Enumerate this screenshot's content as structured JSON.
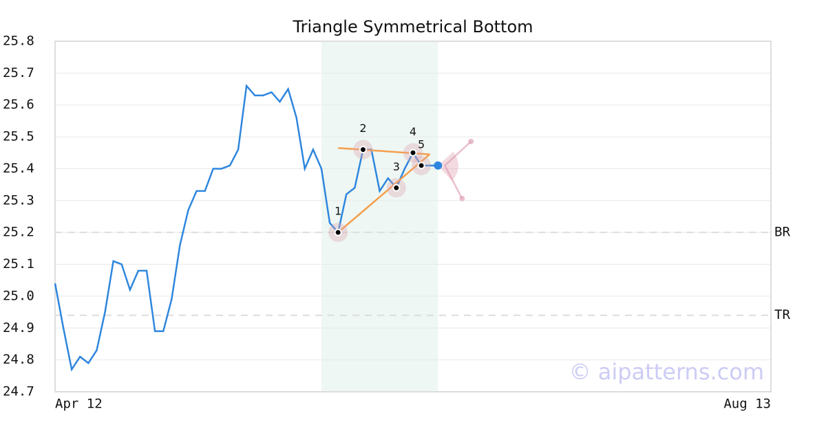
{
  "chart_data": {
    "type": "line",
    "title": "Triangle Symmetrical Bottom",
    "categories": [
      "Apr 12",
      null,
      null,
      null,
      null,
      null,
      null,
      null,
      null,
      null,
      null,
      null,
      null,
      null,
      null,
      null,
      null,
      null,
      null,
      null,
      null,
      null,
      null,
      null,
      null,
      null,
      null,
      null,
      null,
      null,
      null,
      null,
      null,
      null,
      null,
      null,
      null,
      null,
      null,
      null,
      null,
      null,
      null,
      null,
      null,
      null,
      null,
      null,
      null,
      null,
      null,
      null,
      null,
      null,
      null,
      null,
      null,
      null,
      null,
      null,
      null,
      null,
      null,
      null,
      null,
      null,
      null,
      null,
      null,
      null,
      null,
      null,
      null,
      null,
      null,
      null,
      null,
      null,
      null,
      null,
      null,
      null,
      null,
      null,
      null,
      null,
      "Aug 13"
    ],
    "series": [
      {
        "color": "#2e86de",
        "values": [
          25.04,
          24.9,
          24.77,
          24.81,
          24.79,
          24.83,
          24.95,
          25.11,
          25.1,
          25.02,
          25.08,
          25.08,
          24.89,
          24.89,
          24.99,
          25.16,
          25.27,
          25.33,
          25.33,
          25.4,
          25.4,
          25.41,
          25.46,
          25.66,
          25.63,
          25.63,
          25.64,
          25.61,
          25.65,
          25.56,
          25.4,
          25.46,
          25.4,
          25.23,
          25.2,
          25.32,
          25.34,
          25.46,
          25.46,
          25.33,
          25.37,
          25.34,
          25.4,
          25.45,
          25.41,
          25.41,
          25.41,
          null,
          null,
          null,
          null,
          null,
          null,
          null,
          null,
          null,
          null,
          null,
          null,
          null,
          null,
          null,
          null,
          null,
          null,
          null,
          null,
          null,
          null,
          null,
          null,
          null,
          null,
          null,
          null,
          null,
          null,
          null,
          null,
          null,
          null,
          null,
          null,
          null,
          null,
          null,
          null
        ]
      }
    ],
    "pattern_points": [
      {
        "label": "1",
        "index": 34
      },
      {
        "label": "2",
        "index": 37
      },
      {
        "label": "3",
        "index": 41
      },
      {
        "label": "4",
        "index": 43
      },
      {
        "label": "5",
        "index": 44
      }
    ],
    "trendlines": {
      "color": "#f59e4c",
      "lines": [
        {
          "from": [
            34,
            25.465
          ],
          "to": [
            45,
            25.445
          ]
        },
        {
          "from": [
            34,
            25.2
          ],
          "to": [
            45,
            25.445
          ]
        }
      ]
    },
    "highlight_range": {
      "from": 32,
      "to": 46,
      "color": "#eef7f3"
    },
    "levels": [
      {
        "label": "BR",
        "value": 25.2
      },
      {
        "label": "TR",
        "value": 24.94
      }
    ],
    "watermark": "© aipatterns.com",
    "ylim": [
      24.7,
      25.8
    ],
    "yticks": [
      24.7,
      24.8,
      24.9,
      {
        "value": 25,
        "label": "25.0"
      },
      25.1,
      25.2,
      25.3,
      25.4,
      25.5,
      25.6,
      25.7,
      25.8
    ],
    "grid": true
  }
}
